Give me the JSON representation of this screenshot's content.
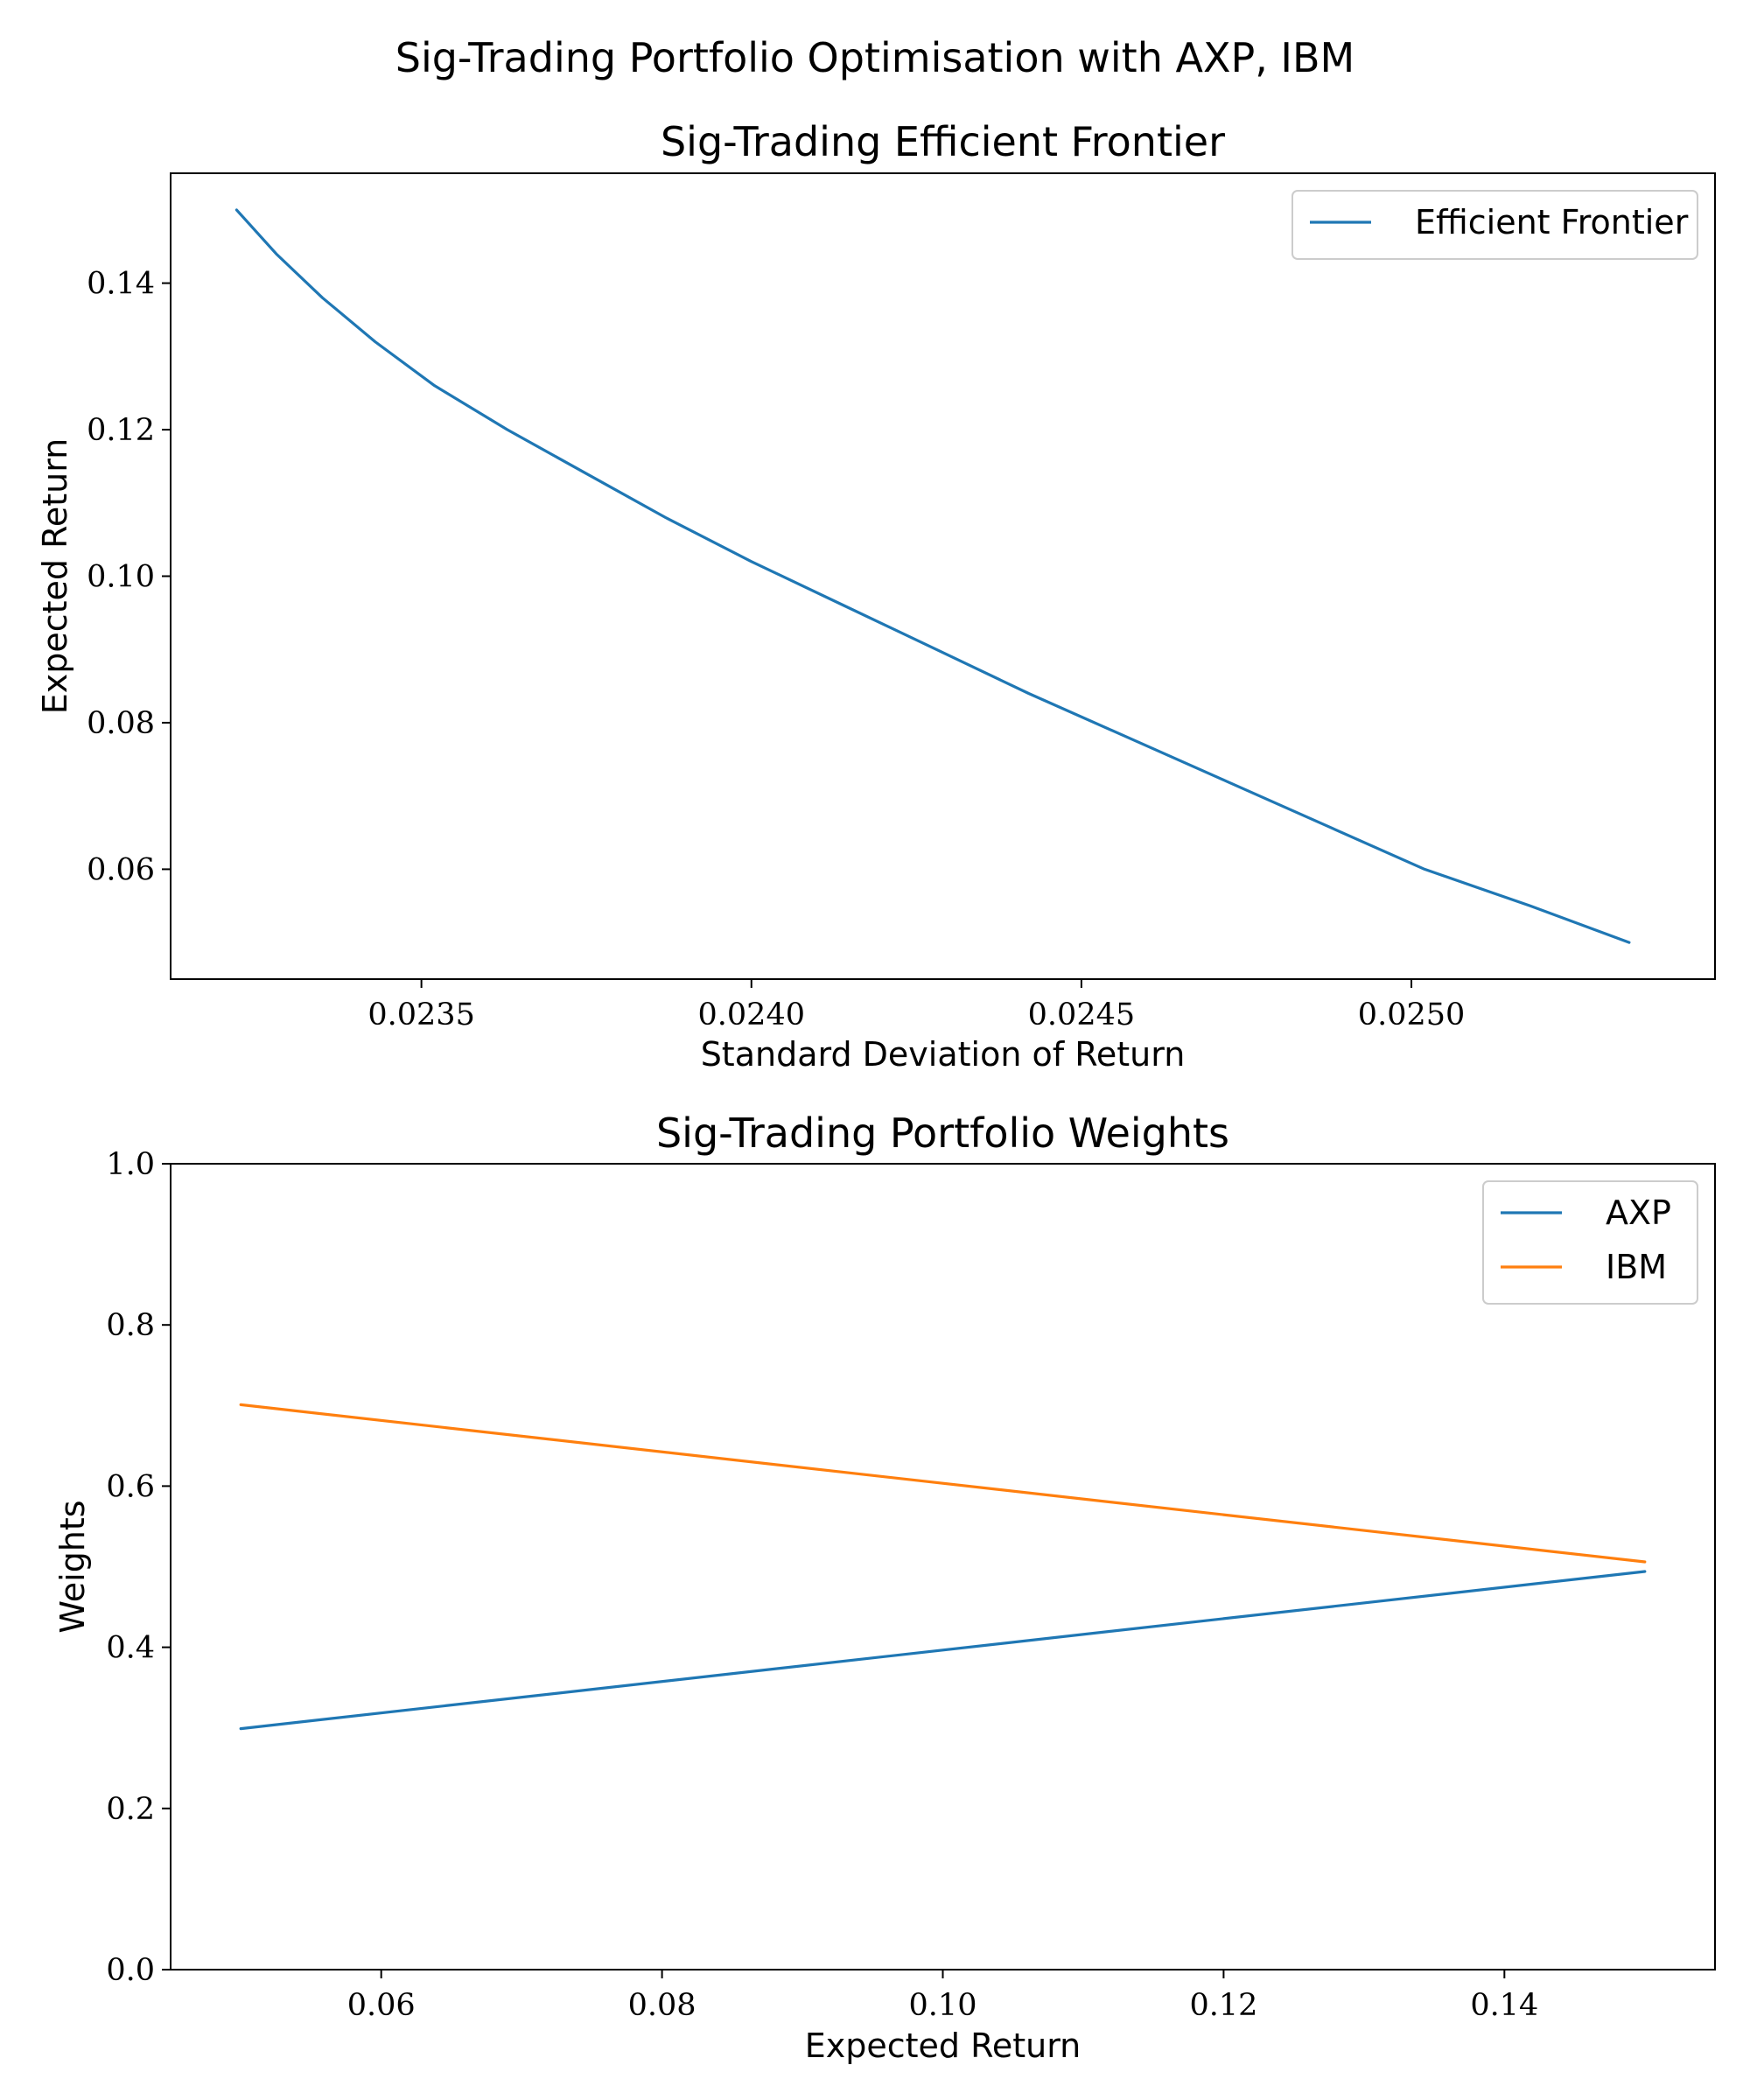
{
  "figure": {
    "suptitle": "Sig-Trading Portfolio Optimisation with AXP, IBM"
  },
  "chart_data": [
    {
      "type": "line",
      "title": "Sig-Trading Efficient Frontier",
      "xlabel": "Standard Deviation of Return",
      "ylabel": "Expected Return",
      "xlim": [
        0.02312,
        0.02546
      ],
      "ylim": [
        0.045,
        0.155
      ],
      "xticks": [
        "0.0235",
        "0.0240",
        "0.0245",
        "0.0250"
      ],
      "yticks": [
        "0.06",
        "0.08",
        "0.10",
        "0.12",
        "0.14"
      ],
      "xtick_values": [
        0.0235,
        0.024,
        0.0245,
        0.025
      ],
      "ytick_values": [
        0.06,
        0.08,
        0.1,
        0.12,
        0.14
      ],
      "legend": "upper right",
      "grid": false,
      "series": [
        {
          "name": "Efficient Frontier",
          "color": "#1f77b4",
          "x": [
            0.02322,
            0.02328,
            0.02335,
            0.02343,
            0.02352,
            0.02363,
            0.02375,
            0.02387,
            0.024,
            0.02414,
            0.02428,
            0.02442,
            0.02457,
            0.02472,
            0.02487,
            0.02502,
            0.02518,
            0.02533
          ],
          "y": [
            0.15,
            0.144,
            0.138,
            0.132,
            0.126,
            0.12,
            0.114,
            0.108,
            0.102,
            0.096,
            0.09,
            0.084,
            0.078,
            0.072,
            0.066,
            0.06,
            0.055,
            0.05
          ]
        }
      ]
    },
    {
      "type": "line",
      "title": "Sig-Trading Portfolio Weights",
      "xlabel": "Expected Return",
      "ylabel": "Weights",
      "xlim": [
        0.045,
        0.155
      ],
      "ylim": [
        0.0,
        1.0
      ],
      "xticks": [
        "0.06",
        "0.08",
        "0.10",
        "0.12",
        "0.14"
      ],
      "yticks": [
        "0.0",
        "0.2",
        "0.4",
        "0.6",
        "0.8",
        "1.0"
      ],
      "xtick_values": [
        0.06,
        0.08,
        0.1,
        0.12,
        0.14
      ],
      "ytick_values": [
        0.0,
        0.2,
        0.4,
        0.6,
        0.8,
        1.0
      ],
      "legend": "upper right",
      "grid": false,
      "series": [
        {
          "name": "AXP",
          "color": "#1f77b4",
          "x": [
            0.05,
            0.15
          ],
          "y": [
            0.299,
            0.494
          ]
        },
        {
          "name": "IBM",
          "color": "#ff7f0e",
          "x": [
            0.05,
            0.15
          ],
          "y": [
            0.701,
            0.506
          ]
        }
      ]
    }
  ]
}
